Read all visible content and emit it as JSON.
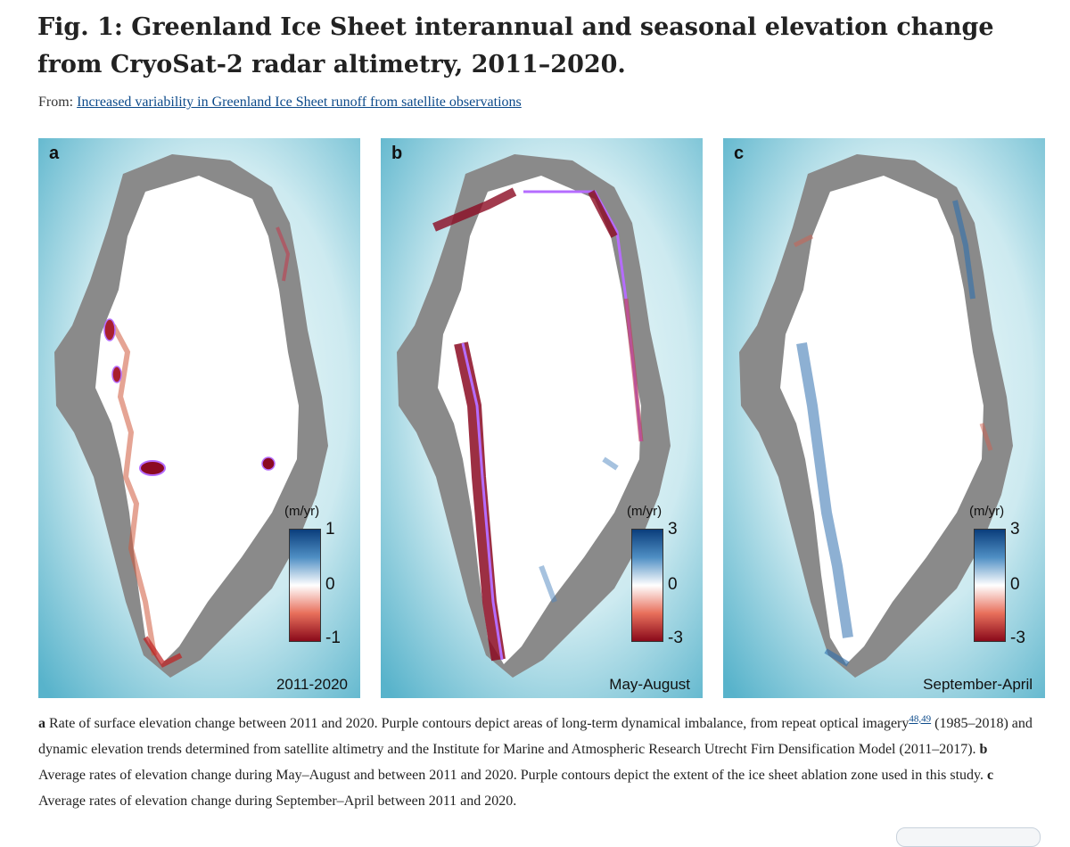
{
  "figure": {
    "title": "Fig. 1: Greenland Ice Sheet interannual and seasonal elevation change from CryoSat-2 radar altimetry, 2011–2020.",
    "from_label": "From:",
    "from_link": "Increased variability in Greenland Ice Sheet runoff from satellite observations",
    "colors": {
      "ocean_light": "#eaf6f8",
      "ocean_dark": "#5ab4cc",
      "land": "#8a8a8a",
      "contour": "#b56cff"
    }
  },
  "panels": [
    {
      "letter": "a",
      "period": "2011-2020",
      "unit": "(m/yr)",
      "ticks": [
        "1",
        "0",
        "-1"
      ]
    },
    {
      "letter": "b",
      "period": "May-August",
      "unit": "(m/yr)",
      "ticks": [
        "3",
        "0",
        "-3"
      ]
    },
    {
      "letter": "c",
      "period": "September-April",
      "unit": "(m/yr)",
      "ticks": [
        "3",
        "0",
        "-3"
      ]
    }
  ],
  "caption": {
    "a_label": "a",
    "a_text": " Rate of surface elevation change between 2011 and 2020. Purple contours depict areas of long-term dynamical imbalance, from repeat optical imagery",
    "refs": "48,49",
    "a_text2": " (1985–2018) and dynamic elevation trends determined from satellite altimetry and the Institute for Marine and Atmospheric Research Utrecht Firn Densification Model (2011–2017). ",
    "b_label": "b",
    "b_text": " Average rates of elevation change during May–August and between 2011 and 2020. Purple contours depict the extent of the ice sheet ablation zone used in this study. ",
    "c_label": "c",
    "c_text": " Average rates of elevation change during September–April between 2011 and 2020."
  }
}
